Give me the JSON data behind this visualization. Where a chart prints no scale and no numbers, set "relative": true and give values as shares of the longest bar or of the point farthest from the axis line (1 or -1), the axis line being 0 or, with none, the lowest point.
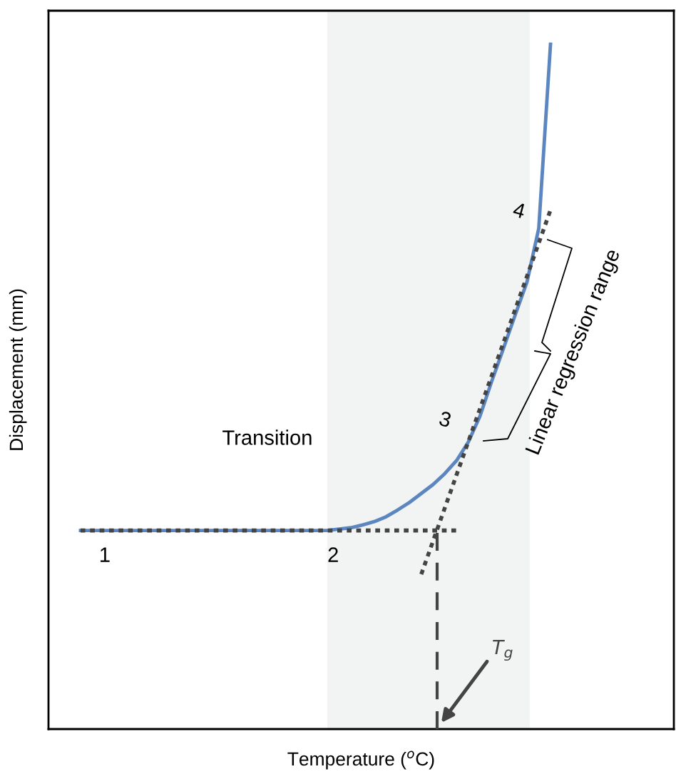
{
  "chart_data": {
    "type": "line",
    "relative": true,
    "xlabel": "Temperature ($^{o}$C)",
    "ylabel": "Displacement (mm)",
    "categories": [
      null,
      null,
      null,
      null,
      null,
      null,
      null,
      null,
      null,
      null,
      null,
      null,
      null,
      null,
      null,
      null,
      null,
      null,
      null,
      null,
      null,
      null,
      null,
      null,
      null,
      null,
      null,
      null,
      null,
      null,
      null,
      null,
      null,
      null,
      null,
      null,
      null,
      null,
      null,
      null,
      null
    ],
    "series": [
      {
        "color": "#5b86c0",
        "line_style": "solid",
        "values": [
          0.29,
          0.29,
          0.29,
          0.29,
          0.29,
          0.29,
          0.29,
          0.29,
          0.29,
          0.29,
          0.29,
          0.29,
          0.29,
          0.29,
          0.29,
          0.29,
          0.29,
          0.29,
          0.29,
          0.29,
          0.29,
          0.29,
          0.292,
          0.294,
          0.298,
          0.303,
          0.31,
          0.32,
          0.331,
          0.344,
          0.357,
          0.373,
          0.392,
          0.419,
          0.457,
          0.508,
          0.556,
          0.605,
          0.653,
          0.731,
          1
        ]
      },
      {
        "color": "#444444",
        "line_style": "dotted",
        "values": [
          0.29,
          0.29,
          0.29,
          0.29,
          0.29,
          0.29,
          0.29,
          0.29,
          0.29,
          0.29,
          0.29,
          0.29,
          0.29,
          0.29,
          0.29,
          0.29,
          0.29,
          0.29,
          0.29,
          0.29,
          0.29,
          0.29,
          0.29,
          0.29,
          0.29,
          0.29,
          0.29,
          0.29,
          0.29,
          0.29,
          0.29,
          0.29,
          0.29,
          null,
          null,
          null,
          null,
          null,
          null,
          null,
          null
        ]
      },
      {
        "color": "#444444",
        "line_style": "dotted",
        "values": [
          null,
          null,
          null,
          null,
          null,
          null,
          null,
          null,
          null,
          null,
          null,
          null,
          null,
          null,
          null,
          null,
          null,
          null,
          null,
          null,
          null,
          null,
          null,
          null,
          null,
          null,
          null,
          null,
          null,
          0.226,
          null,
          null,
          null,
          null,
          null,
          null,
          null,
          null,
          null,
          null,
          0.758
        ]
      }
    ],
    "annotations": [
      "1",
      "2",
      "3",
      "4",
      "Transition",
      "Linear regression range",
      "T$_{g}$"
    ],
    "legend": false
  }
}
